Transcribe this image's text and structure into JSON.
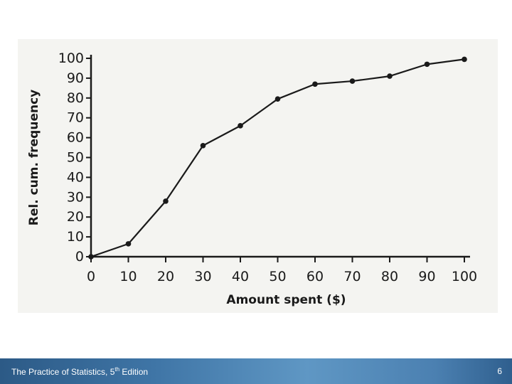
{
  "footer": {
    "title_pre": "The Practice of Statistics, 5",
    "title_sup": "th",
    "title_post": " Edition",
    "page_number": "6"
  },
  "chart_data": {
    "type": "line",
    "xlabel": "Amount spent ($)",
    "ylabel": "Rel. cum. frequency",
    "x": [
      0,
      10,
      20,
      30,
      40,
      50,
      60,
      70,
      80,
      90,
      100
    ],
    "y": [
      0,
      6.5,
      28,
      56,
      66,
      79.5,
      87,
      88.5,
      91,
      97,
      99.5
    ],
    "xlim": [
      0,
      100
    ],
    "ylim": [
      0,
      100
    ],
    "xticks": [
      "0",
      "10",
      "20",
      "30",
      "40",
      "50",
      "60",
      "70",
      "80",
      "90",
      "100"
    ],
    "yticks": [
      "0",
      "10",
      "20",
      "30",
      "40",
      "50",
      "60",
      "70",
      "80",
      "90",
      "100"
    ],
    "grid": false,
    "line_color": "#1a1a1a",
    "marker": "dot"
  }
}
